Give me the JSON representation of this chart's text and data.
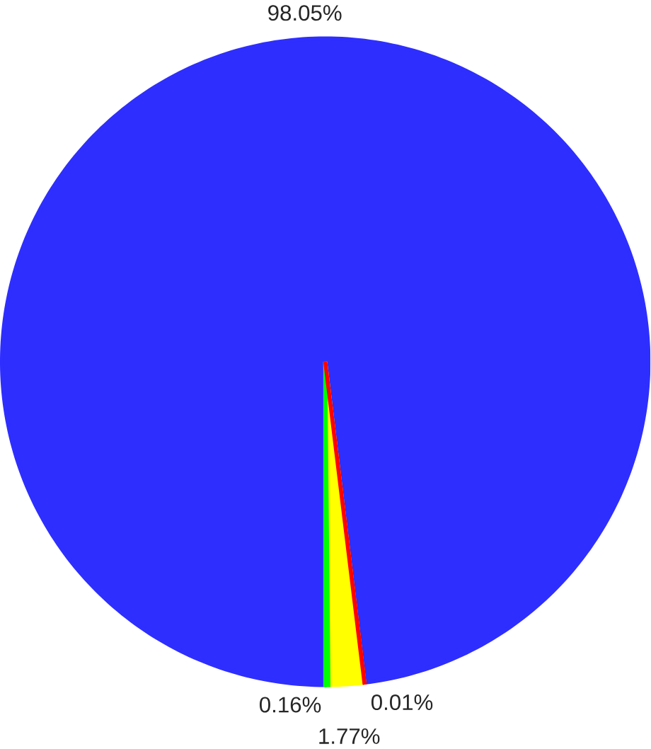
{
  "chart_data": {
    "type": "pie",
    "categories": [
      null,
      null,
      null,
      null
    ],
    "values": [
      0.16,
      1.77,
      0.01,
      98.05
    ],
    "colors": [
      "#00ff00",
      "#ffff00",
      "#ff0000",
      "#2e2eff"
    ],
    "value_labels": [
      "0.16%",
      "1.77%",
      "0.01%",
      "98.05%"
    ]
  }
}
